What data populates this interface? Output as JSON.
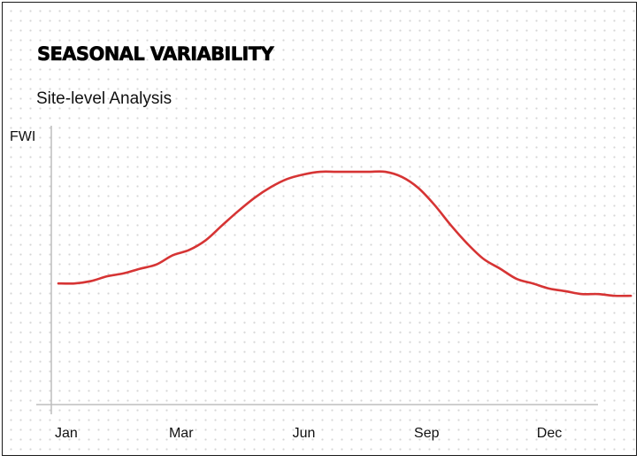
{
  "chart_data": {
    "type": "line",
    "title": "SEASONAL VARIABILITY",
    "subtitle": "Site-level Analysis",
    "ylabel": "FWI",
    "xlabel": "",
    "xlim": [
      0,
      11.5
    ],
    "ylim": [
      0,
      100
    ],
    "grid": false,
    "x_ticks": [
      {
        "x": 0,
        "label": "Jan"
      },
      {
        "x": 2.5,
        "label": "Mar"
      },
      {
        "x": 5,
        "label": "Jun"
      },
      {
        "x": 7.5,
        "label": "Sep"
      },
      {
        "x": 10,
        "label": "Dec"
      }
    ],
    "series": [
      {
        "color": "#d63434",
        "points": [
          [
            0,
            41.8
          ],
          [
            0.33,
            41.8
          ],
          [
            0.66,
            42.6
          ],
          [
            1,
            44.3
          ],
          [
            1.33,
            45.3
          ],
          [
            1.66,
            46.9
          ],
          [
            2,
            48.4
          ],
          [
            2.33,
            51.6
          ],
          [
            2.66,
            53.4
          ],
          [
            3,
            56.8
          ],
          [
            3.33,
            61.9
          ],
          [
            3.66,
            66.9
          ],
          [
            4,
            71.6
          ],
          [
            4.33,
            75.3
          ],
          [
            4.66,
            78.1
          ],
          [
            5,
            79.7
          ],
          [
            5.33,
            80.6
          ],
          [
            5.66,
            80.6
          ],
          [
            6,
            80.6
          ],
          [
            6.33,
            80.6
          ],
          [
            6.66,
            80.6
          ],
          [
            7,
            78.8
          ],
          [
            7.33,
            75.0
          ],
          [
            7.66,
            69.1
          ],
          [
            8,
            61.9
          ],
          [
            8.33,
            55.6
          ],
          [
            8.66,
            50.3
          ],
          [
            9,
            46.9
          ],
          [
            9.33,
            43.4
          ],
          [
            9.66,
            41.8
          ],
          [
            10,
            40.0
          ],
          [
            10.33,
            39.1
          ],
          [
            10.66,
            38.1
          ],
          [
            11,
            38.1
          ],
          [
            11.33,
            37.5
          ],
          [
            11.66,
            37.5
          ]
        ]
      }
    ]
  }
}
